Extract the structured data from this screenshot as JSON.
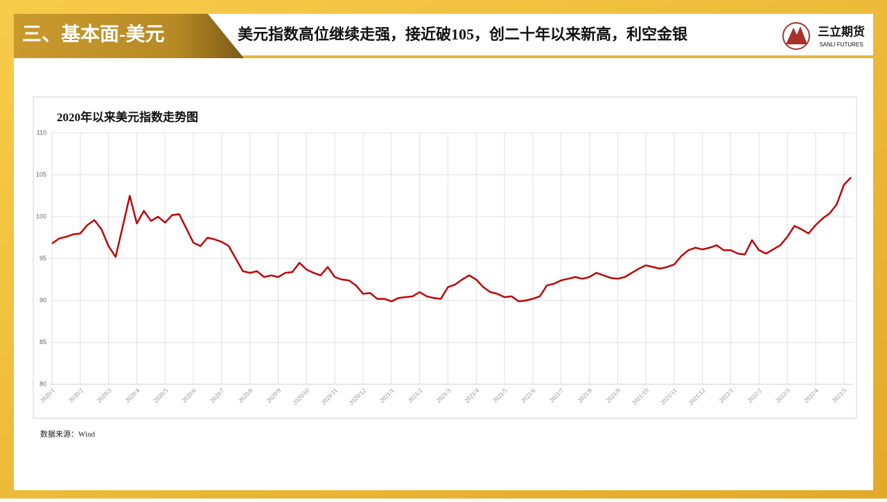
{
  "header": {
    "section": "三、基本面-美元",
    "title": "美元指数高位继续走强，接近破105，创二十年以来新高，利空金银",
    "logo_cn": "三立期货",
    "logo_en": "SANLI FUTURES"
  },
  "chart_data": {
    "type": "line",
    "title": "2020年以来美元指数走势图",
    "color": "#c00000",
    "categories": [
      "2020/1",
      null,
      null,
      null,
      "2020/2",
      null,
      null,
      null,
      "2020/3",
      null,
      null,
      null,
      "2020/4",
      null,
      null,
      null,
      "2020/5",
      null,
      null,
      null,
      "2020/6",
      null,
      null,
      null,
      "2020/7",
      null,
      null,
      null,
      "2020/8",
      null,
      null,
      null,
      "2020/9",
      null,
      null,
      null,
      "2020/10",
      null,
      null,
      null,
      "2020/11",
      null,
      null,
      null,
      "2020/12",
      null,
      null,
      null,
      "2021/1",
      null,
      null,
      null,
      "2021/2",
      null,
      null,
      null,
      "2021/3",
      null,
      null,
      null,
      "2021/4",
      null,
      null,
      null,
      "2021/5",
      null,
      null,
      null,
      "2021/6",
      null,
      null,
      null,
      "2021/7",
      null,
      null,
      null,
      "2021/8",
      null,
      null,
      null,
      "2021/9",
      null,
      null,
      null,
      "2021/10",
      null,
      null,
      null,
      "2021/11",
      null,
      null,
      null,
      "2021/12",
      null,
      null,
      null,
      "2022/1",
      null,
      null,
      null,
      "2022/2",
      null,
      null,
      null,
      "2022/3",
      null,
      null,
      null,
      "2022/4",
      null,
      null,
      null,
      "2022/5",
      null
    ],
    "values": [
      96.8,
      97.4,
      97.6,
      97.9,
      98.0,
      99.0,
      99.6,
      98.5,
      96.5,
      95.2,
      98.8,
      102.5,
      99.2,
      100.7,
      99.5,
      100.0,
      99.3,
      100.2,
      100.3,
      98.6,
      96.9,
      96.5,
      97.5,
      97.3,
      97.0,
      96.5,
      95.0,
      93.5,
      93.3,
      93.5,
      92.8,
      93.0,
      92.8,
      93.3,
      93.4,
      94.5,
      93.7,
      93.3,
      93.0,
      94.0,
      92.8,
      92.5,
      92.4,
      91.8,
      90.8,
      90.9,
      90.2,
      90.2,
      89.9,
      90.3,
      90.4,
      90.5,
      91.0,
      90.5,
      90.3,
      90.2,
      91.6,
      91.9,
      92.5,
      93.0,
      92.5,
      91.6,
      91.0,
      90.8,
      90.4,
      90.5,
      89.9,
      90.0,
      90.2,
      90.5,
      91.8,
      92.0,
      92.4,
      92.6,
      92.8,
      92.6,
      92.8,
      93.3,
      93.0,
      92.7,
      92.6,
      92.8,
      93.3,
      93.8,
      94.2,
      94.0,
      93.8,
      94.0,
      94.3,
      95.3,
      96.0,
      96.3,
      96.1,
      96.3,
      96.6,
      96.0,
      96.0,
      95.6,
      95.5,
      97.2,
      96.0,
      95.6,
      96.1,
      96.6,
      97.6,
      98.9,
      98.5,
      98.0,
      99.0,
      99.8,
      100.4,
      101.5,
      103.8,
      104.7
    ],
    "ylim": [
      80,
      110
    ],
    "yticks": [
      80,
      85,
      90,
      95,
      100,
      105,
      110
    ],
    "grid": true
  },
  "footer": {
    "source": "数据来源：Wind"
  }
}
